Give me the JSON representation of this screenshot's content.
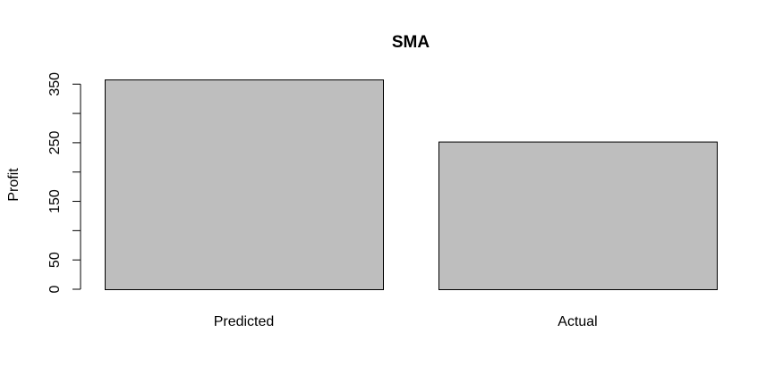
{
  "chart_data": {
    "type": "bar",
    "title": "SMA",
    "xlabel": "",
    "ylabel": "Profit",
    "categories": [
      "Predicted",
      "Actual"
    ],
    "values": [
      358,
      252
    ],
    "ylim": [
      0,
      358
    ],
    "y_ticks": [
      0,
      50,
      100,
      150,
      200,
      250,
      300,
      350
    ],
    "y_tick_labels": [
      "0",
      "50",
      "",
      "150",
      "",
      "250",
      "",
      "350"
    ],
    "grid": false,
    "legend": "none",
    "colors": {
      "bar_fill": "#bebebe",
      "bar_stroke": "#000000",
      "axis": "#000000"
    }
  }
}
